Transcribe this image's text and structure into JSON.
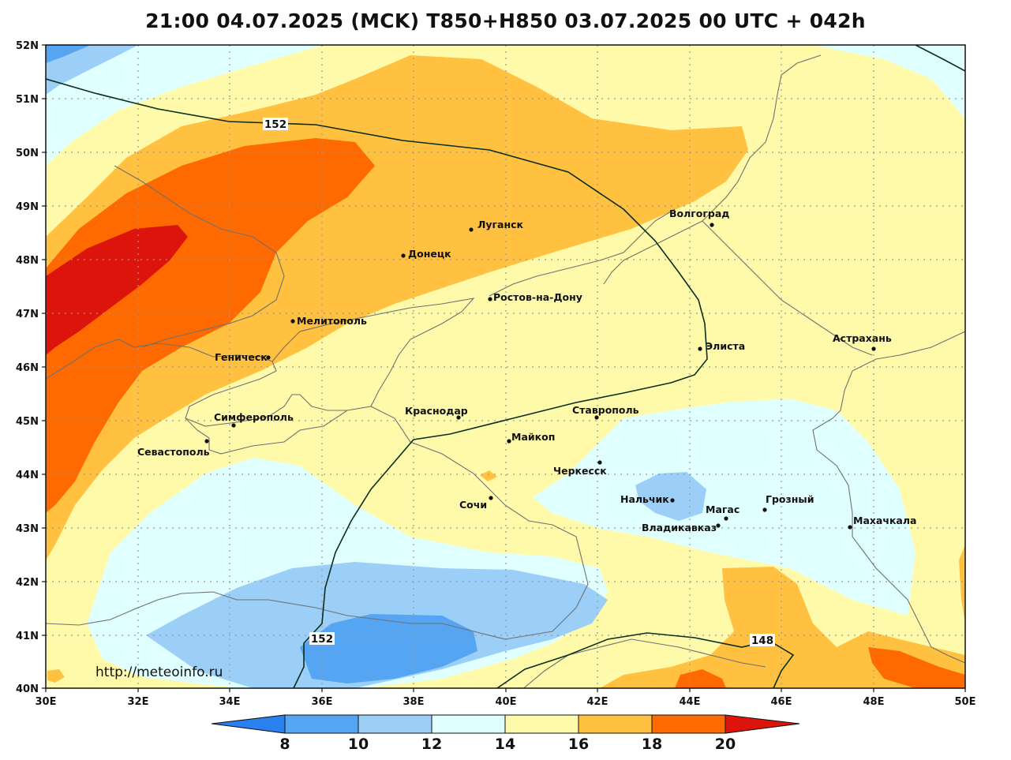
{
  "title": "21:00 04.07.2025 (MCK) T850+H850 03.07.2025 00 UTC + 042h",
  "source_url": "http://meteoinfo.ru",
  "colors": {
    "t8_below": "#2a80ee",
    "t8_10": "#56a5f2",
    "t10_12": "#9bcff8",
    "t12_14": "#e0ffff",
    "t14_16": "#fffaaa",
    "t16_18": "#ffc13f",
    "t18_20": "#ff6a00",
    "t20_above": "#dc140c",
    "coast": "#707070",
    "contour": "#0a2e1c"
  },
  "lat_labels": [
    "52N",
    "51N",
    "50N",
    "49N",
    "48N",
    "47N",
    "46N",
    "45N",
    "44N",
    "43N",
    "42N",
    "41N",
    "40N"
  ],
  "lon_labels": [
    "30E",
    "32E",
    "34E",
    "36E",
    "38E",
    "40E",
    "42E",
    "44E",
    "46E",
    "48E",
    "50E"
  ],
  "colorbar_labels": [
    "8",
    "10",
    "12",
    "14",
    "16",
    "18",
    "20"
  ],
  "contour_labels": [
    "152",
    "152",
    "148"
  ],
  "cities": [
    {
      "name": "Волгоград",
      "lon": 44.5,
      "lat": 48.7
    },
    {
      "name": "Луганск",
      "lon": 39.3,
      "lat": 48.57
    },
    {
      "name": "Донецк",
      "lon": 37.8,
      "lat": 48.0
    },
    {
      "name": "Ростов-на-Дону",
      "lon": 39.7,
      "lat": 47.23
    },
    {
      "name": "Мелитополь",
      "lon": 35.37,
      "lat": 46.85
    },
    {
      "name": "Геническ",
      "lon": 34.82,
      "lat": 46.17
    },
    {
      "name": "Элиста",
      "lon": 44.27,
      "lat": 46.31
    },
    {
      "name": "Астрахань",
      "lon": 48.03,
      "lat": 46.35
    },
    {
      "name": "Симферополь",
      "lon": 34.1,
      "lat": 44.95
    },
    {
      "name": "Краснодар",
      "lon": 38.98,
      "lat": 45.04
    },
    {
      "name": "Ставрополь",
      "lon": 41.97,
      "lat": 45.04
    },
    {
      "name": "Севастополь",
      "lon": 33.52,
      "lat": 44.6
    },
    {
      "name": "Майкоп",
      "lon": 40.1,
      "lat": 44.6
    },
    {
      "name": "Черкесск",
      "lon": 42.06,
      "lat": 44.23
    },
    {
      "name": "Нальчик",
      "lon": 43.62,
      "lat": 43.49
    },
    {
      "name": "Сочи",
      "lon": 39.72,
      "lat": 43.58
    },
    {
      "name": "Грозный",
      "lon": 45.7,
      "lat": 43.31
    },
    {
      "name": "Магас",
      "lon": 44.8,
      "lat": 43.17
    },
    {
      "name": "Владикавказ",
      "lon": 44.67,
      "lat": 43.02
    },
    {
      "name": "Махачкала",
      "lon": 47.5,
      "lat": 42.98
    }
  ]
}
